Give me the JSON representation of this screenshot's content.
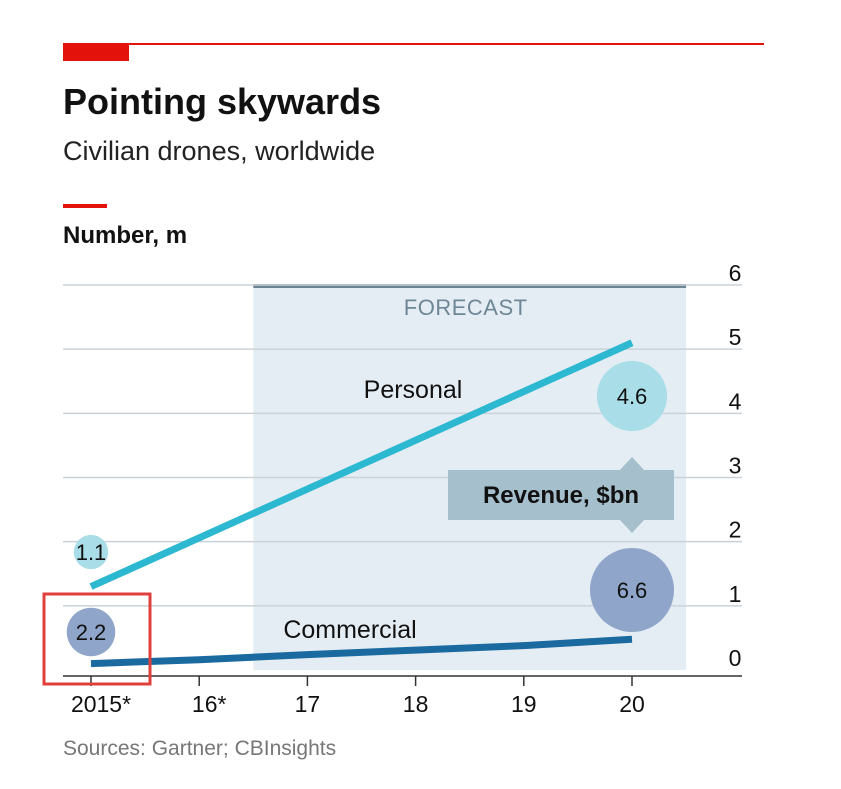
{
  "header": {
    "title": "Pointing skywards",
    "subtitle": "Civilian drones, worldwide",
    "unit_label": "Number, m"
  },
  "chart_data": {
    "type": "line",
    "ylabel": "Number, m",
    "ylim": [
      0,
      6
    ],
    "yticks": [
      "0",
      "1",
      "2",
      "3",
      "4",
      "5",
      "6"
    ],
    "x": [
      2015,
      2016,
      2017,
      2018,
      2019,
      2020
    ],
    "xtick_labels": [
      "2015*",
      "16*",
      "17",
      "18",
      "19",
      "20"
    ],
    "forecast": {
      "label": "FORECAST",
      "from": 2016.5,
      "to": 2020.5
    },
    "series": [
      {
        "name": "Personal",
        "points": [
          [
            2015,
            1.3
          ],
          [
            2020,
            5.1
          ]
        ],
        "color": "#2cb8d0"
      },
      {
        "name": "Commercial",
        "points": [
          [
            2015,
            0.1
          ],
          [
            2016,
            0.16
          ],
          [
            2017,
            0.24
          ],
          [
            2018,
            0.31
          ],
          [
            2019,
            0.38
          ],
          [
            2020,
            0.48
          ]
        ],
        "color": "#1a6aa0"
      }
    ],
    "revenue": {
      "label": "Revenue, $bn",
      "bubbles": [
        {
          "series": "Personal",
          "year": 2015,
          "value": "1.1",
          "amount": 1.1,
          "color": "#a9dde8"
        },
        {
          "series": "Commercial",
          "year": 2015,
          "value": "2.2",
          "amount": 2.2,
          "color": "#8fa5c9"
        },
        {
          "series": "Personal",
          "year": 2020,
          "value": "4.6",
          "amount": 4.6,
          "color": "#a9dde8"
        },
        {
          "series": "Commercial",
          "year": 2020,
          "value": "6.6",
          "amount": 6.6,
          "color": "#8fa5c9"
        }
      ]
    },
    "colors": {
      "accent": "#e3120b",
      "forecast_fill": "#e5edf4",
      "forecast_bar": "#6c8494",
      "grid": "#c9d2da",
      "arrow": "#a6bfcd",
      "highlight_box": "#e0403c"
    }
  },
  "footer": {
    "source": "Sources: Gartner; CBInsights"
  }
}
